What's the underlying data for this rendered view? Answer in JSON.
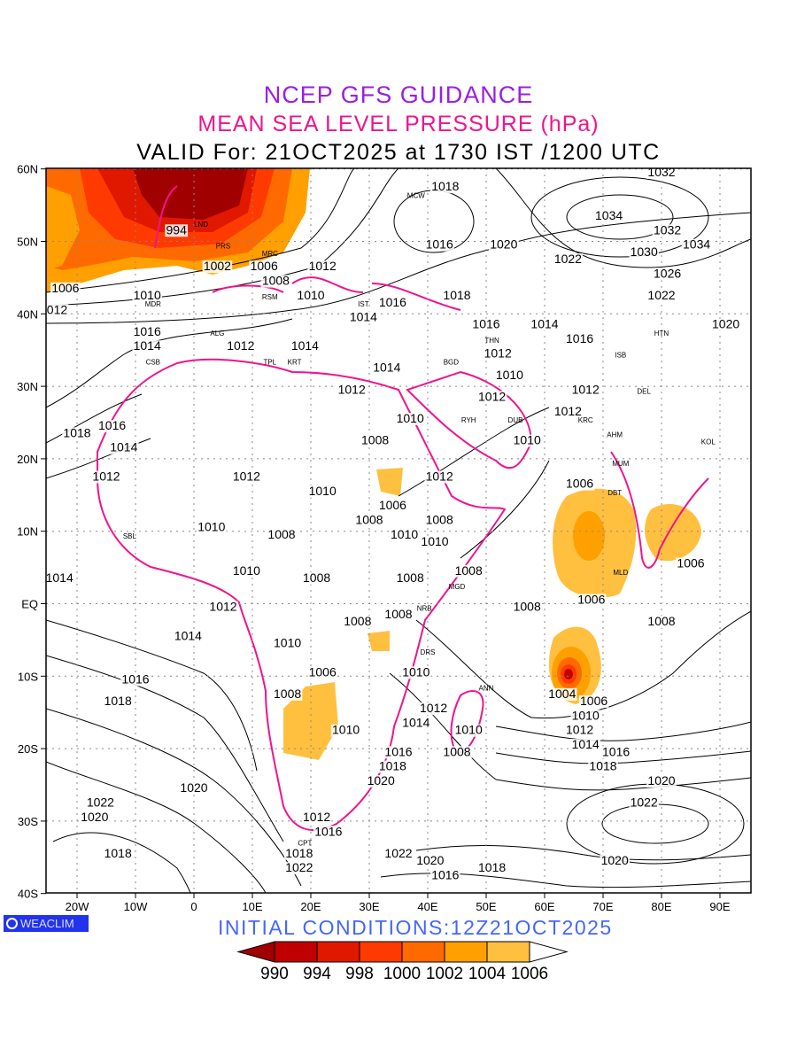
{
  "header": {
    "title": "NCEP GFS GUIDANCE",
    "subtitle": "MEAN SEA LEVEL PRESSURE (hPa)",
    "valid": "VALID For: 21OCT2025 at 1730 IST /1200 UTC"
  },
  "footer": {
    "logo": "WEACLIM",
    "initial_conditions": "INITIAL  CONDITIONS:12Z21OCT2025"
  },
  "axes": {
    "lat_labels": [
      "60N",
      "50N",
      "40N",
      "30N",
      "20N",
      "10N",
      "EQ",
      "10S",
      "20S",
      "30S",
      "40S"
    ],
    "lat_values": [
      60,
      50,
      40,
      30,
      20,
      10,
      0,
      -10,
      -20,
      -30,
      -40
    ],
    "lon_labels": [
      "20W",
      "10W",
      "0",
      "10E",
      "20E",
      "30E",
      "40E",
      "50E",
      "60E",
      "70E",
      "80E",
      "90E"
    ],
    "lon_values": [
      -20,
      -10,
      0,
      10,
      20,
      30,
      40,
      50,
      60,
      70,
      80,
      90
    ]
  },
  "colorbar": {
    "labels": [
      "990",
      "994",
      "998",
      "1000",
      "1002",
      "1004",
      "1006"
    ],
    "colors": [
      "#a00000",
      "#c00000",
      "#e01800",
      "#ff3a00",
      "#ff6a00",
      "#ffa000",
      "#ffc040",
      "#ffffff"
    ]
  },
  "contour_labels": [
    {
      "t": "1032",
      "lon": 80,
      "lat": 59
    },
    {
      "t": "1034",
      "lon": 71,
      "lat": 53
    },
    {
      "t": "1032",
      "lon": 81,
      "lat": 51
    },
    {
      "t": "1034",
      "lon": 86,
      "lat": 49
    },
    {
      "t": "1030",
      "lon": 77,
      "lat": 48
    },
    {
      "t": "1026",
      "lon": 81,
      "lat": 45
    },
    {
      "t": "1022",
      "lon": 80,
      "lat": 42
    },
    {
      "t": "1020",
      "lon": 91,
      "lat": 38
    },
    {
      "t": "1018",
      "lon": 43,
      "lat": 57
    },
    {
      "t": "1016",
      "lon": 42,
      "lat": 49
    },
    {
      "t": "1020",
      "lon": 53,
      "lat": 49
    },
    {
      "t": "1022",
      "lon": 64,
      "lat": 47
    },
    {
      "t": "994",
      "lon": -3,
      "lat": 51
    },
    {
      "t": "1002",
      "lon": 4,
      "lat": 46
    },
    {
      "t": "1006",
      "lon": 12,
      "lat": 46
    },
    {
      "t": "1012",
      "lon": 22,
      "lat": 46
    },
    {
      "t": "1008",
      "lon": 14,
      "lat": 44
    },
    {
      "t": "1010",
      "lon": 20,
      "lat": 42
    },
    {
      "t": "1006",
      "lon": -22,
      "lat": 43
    },
    {
      "t": "1012",
      "lon": -24,
      "lat": 40
    },
    {
      "t": "1010",
      "lon": -8,
      "lat": 42
    },
    {
      "t": "1016",
      "lon": -8,
      "lat": 37
    },
    {
      "t": "1014",
      "lon": -8,
      "lat": 35
    },
    {
      "t": "1012",
      "lon": 8,
      "lat": 35
    },
    {
      "t": "1014",
      "lon": 19,
      "lat": 35
    },
    {
      "t": "1014",
      "lon": 29,
      "lat": 39
    },
    {
      "t": "1016",
      "lon": 34,
      "lat": 41
    },
    {
      "t": "1018",
      "lon": 45,
      "lat": 42
    },
    {
      "t": "1016",
      "lon": 50,
      "lat": 38
    },
    {
      "t": "1014",
      "lon": 60,
      "lat": 38
    },
    {
      "t": "1014",
      "lon": 33,
      "lat": 32
    },
    {
      "t": "1012",
      "lon": 27,
      "lat": 29
    },
    {
      "t": "1012",
      "lon": 52,
      "lat": 34
    },
    {
      "t": "1010",
      "lon": 54,
      "lat": 31
    },
    {
      "t": "1012",
      "lon": 51,
      "lat": 28
    },
    {
      "t": "1012",
      "lon": 67,
      "lat": 29
    },
    {
      "t": "1012",
      "lon": 64,
      "lat": 26
    },
    {
      "t": "1016",
      "lon": 66,
      "lat": 36
    },
    {
      "t": "1010",
      "lon": 37,
      "lat": 25
    },
    {
      "t": "1008",
      "lon": 31,
      "lat": 22
    },
    {
      "t": "1010",
      "lon": 57,
      "lat": 22
    },
    {
      "t": "1018",
      "lon": -20,
      "lat": 23
    },
    {
      "t": "1016",
      "lon": -14,
      "lat": 24
    },
    {
      "t": "1014",
      "lon": -12,
      "lat": 21
    },
    {
      "t": "1012",
      "lon": -15,
      "lat": 17
    },
    {
      "t": "1012",
      "lon": 9,
      "lat": 17
    },
    {
      "t": "1010",
      "lon": 22,
      "lat": 15
    },
    {
      "t": "1012",
      "lon": 42,
      "lat": 17
    },
    {
      "t": "1006",
      "lon": 34,
      "lat": 13
    },
    {
      "t": "1008",
      "lon": 30,
      "lat": 11
    },
    {
      "t": "1008",
      "lon": 42,
      "lat": 11
    },
    {
      "t": "1010",
      "lon": 36,
      "lat": 9
    },
    {
      "t": "1010",
      "lon": 40,
      "lat": 8
    },
    {
      "t": "1010",
      "lon": 3,
      "lat": 10
    },
    {
      "t": "1008",
      "lon": 15,
      "lat": 9
    },
    {
      "t": "1010",
      "lon": 9,
      "lat": 4
    },
    {
      "t": "1014",
      "lon": -23,
      "lat": 3
    },
    {
      "t": "1008",
      "lon": 21,
      "lat": 3
    },
    {
      "t": "1008",
      "lon": 37,
      "lat": 3
    },
    {
      "t": "1008",
      "lon": 47,
      "lat": 4
    },
    {
      "t": "1006",
      "lon": 66,
      "lat": 16
    },
    {
      "t": "1006",
      "lon": 85,
      "lat": 5
    },
    {
      "t": "1006",
      "lon": 68,
      "lat": 0
    },
    {
      "t": "1008",
      "lon": 57,
      "lat": -1
    },
    {
      "t": "1008",
      "lon": 80,
      "lat": -3
    },
    {
      "t": "1012",
      "lon": 5,
      "lat": -1
    },
    {
      "t": "1014",
      "lon": -1,
      "lat": -5
    },
    {
      "t": "1008",
      "lon": 28,
      "lat": -3
    },
    {
      "t": "1008",
      "lon": 35,
      "lat": -2
    },
    {
      "t": "1010",
      "lon": 16,
      "lat": -6
    },
    {
      "t": "1006",
      "lon": 22,
      "lat": -10
    },
    {
      "t": "1010",
      "lon": 38,
      "lat": -10
    },
    {
      "t": "1016",
      "lon": -10,
      "lat": -11
    },
    {
      "t": "1018",
      "lon": -13,
      "lat": -14
    },
    {
      "t": "1008",
      "lon": 16,
      "lat": -13
    },
    {
      "t": "1012",
      "lon": 41,
      "lat": -15
    },
    {
      "t": "1014",
      "lon": 38,
      "lat": -17
    },
    {
      "t": "1010",
      "lon": 26,
      "lat": -18
    },
    {
      "t": "1010",
      "lon": 47,
      "lat": -18
    },
    {
      "t": "1008",
      "lon": 45,
      "lat": -21
    },
    {
      "t": "1016",
      "lon": 35,
      "lat": -21
    },
    {
      "t": "1018",
      "lon": 34,
      "lat": -23
    },
    {
      "t": "1020",
      "lon": 32,
      "lat": -25
    },
    {
      "t": "1004",
      "lon": 63,
      "lat": -13
    },
    {
      "t": "1006",
      "lon": 66,
      "lat": -14
    },
    {
      "t": "1010",
      "lon": 67,
      "lat": -16
    },
    {
      "t": "1012",
      "lon": 66,
      "lat": -18
    },
    {
      "t": "1014",
      "lon": 67,
      "lat": -20
    },
    {
      "t": "1016",
      "lon": 71,
      "lat": -21
    },
    {
      "t": "1018",
      "lon": 70,
      "lat": -23
    },
    {
      "t": "1020",
      "lon": 80,
      "lat": -25
    },
    {
      "t": "1022",
      "lon": 77,
      "lat": -28
    },
    {
      "t": "1020",
      "lon": 0,
      "lat": -26
    },
    {
      "t": "1022",
      "lon": -16,
      "lat": -28
    },
    {
      "t": "1020",
      "lon": -17,
      "lat": -30
    },
    {
      "t": "1012",
      "lon": 21,
      "lat": -30
    },
    {
      "t": "1016",
      "lon": 23,
      "lat": -32
    },
    {
      "t": "1018",
      "lon": 18,
      "lat": -35
    },
    {
      "t": "1022",
      "lon": 18,
      "lat": -37
    },
    {
      "t": "1022",
      "lon": 35,
      "lat": -35
    },
    {
      "t": "1020",
      "lon": 38,
      "lat": -36
    },
    {
      "t": "1016",
      "lon": 43,
      "lat": -38
    },
    {
      "t": "1018",
      "lon": 51,
      "lat": -37
    },
    {
      "t": "1020",
      "lon": 72,
      "lat": -36
    },
    {
      "t": "1018",
      "lon": -13,
      "lat": -35
    }
  ],
  "stations": [
    {
      "t": "MCW",
      "lon": 38,
      "lat": 56
    },
    {
      "t": "LND",
      "lon": 0,
      "lat": 52
    },
    {
      "t": "PRS",
      "lon": 5,
      "lat": 49
    },
    {
      "t": "MRC",
      "lon": 13,
      "lat": 48
    },
    {
      "t": "RSM",
      "lon": 13,
      "lat": 42
    },
    {
      "t": "MDR",
      "lon": -7,
      "lat": 41
    },
    {
      "t": "ALG",
      "lon": 4,
      "lat": 37
    },
    {
      "t": "CSB",
      "lon": -7,
      "lat": 33
    },
    {
      "t": "TPL",
      "lon": 13,
      "lat": 33
    },
    {
      "t": "KRT",
      "lon": 16,
      "lat": 33
    },
    {
      "t": "IST",
      "lon": 29,
      "lat": 41
    },
    {
      "t": "BGD",
      "lon": 44,
      "lat": 33
    },
    {
      "t": "THN",
      "lon": 51,
      "lat": 36
    },
    {
      "t": "RYH",
      "lon": 47,
      "lat": 25
    },
    {
      "t": "DUB",
      "lon": 55,
      "lat": 25
    },
    {
      "t": "KRC",
      "lon": 67,
      "lat": 25
    },
    {
      "t": "DEL",
      "lon": 77,
      "lat": 29
    },
    {
      "t": "ISB",
      "lon": 73,
      "lat": 34
    },
    {
      "t": "HTN",
      "lon": 80,
      "lat": 37
    },
    {
      "t": "AHM",
      "lon": 72,
      "lat": 23
    },
    {
      "t": "MUM",
      "lon": 73,
      "lat": 19
    },
    {
      "t": "KOL",
      "lon": 88,
      "lat": 22
    },
    {
      "t": "DBT",
      "lon": 72,
      "lat": 15
    },
    {
      "t": "SBL",
      "lon": -11,
      "lat": 9
    },
    {
      "t": "MGD",
      "lon": 45,
      "lat": 2
    },
    {
      "t": "NRB",
      "lon": 37,
      "lat": -1
    },
    {
      "t": "DRS",
      "lon": 40,
      "lat": -7
    },
    {
      "t": "ANN",
      "lon": 50,
      "lat": -12
    },
    {
      "t": "MLD",
      "lon": 73,
      "lat": 4
    },
    {
      "t": "CPT",
      "lon": 19,
      "lat": -34
    }
  ]
}
